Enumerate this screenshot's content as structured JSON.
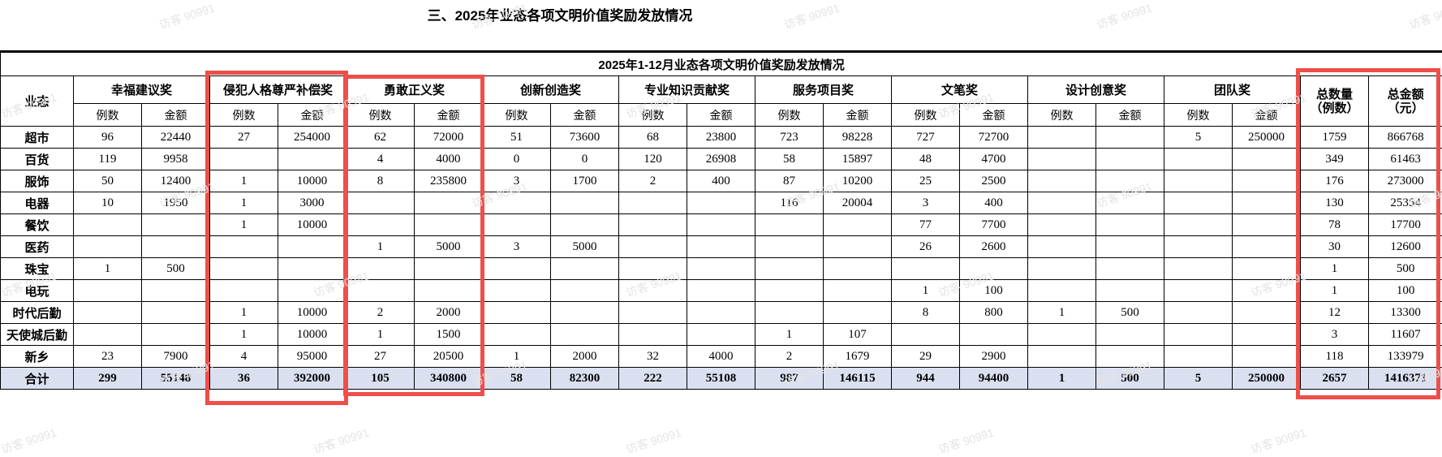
{
  "page_title": "三、2025年业态各项文明价值奖励发放情况",
  "watermark": {
    "text": "访客 90991"
  },
  "table": {
    "caption": "2025年1-12月业态各项文明价值奖励发放情况",
    "col1_header": "业态",
    "sub_headers": {
      "cases": "例数",
      "amount": "金额"
    },
    "groups": [
      {
        "name": "幸福建议奖",
        "highlighted": false
      },
      {
        "name": "侵犯人格尊严补偿奖",
        "highlighted": true
      },
      {
        "name": "勇敢正义奖",
        "highlighted": true
      },
      {
        "name": "创新创造奖",
        "highlighted": false
      },
      {
        "name": "专业知识贡献奖",
        "highlighted": false
      },
      {
        "name": "服务项目奖",
        "highlighted": false
      },
      {
        "name": "文笔奖",
        "highlighted": false
      },
      {
        "name": "设计创意奖",
        "highlighted": false
      },
      {
        "name": "团队奖",
        "highlighted": false
      }
    ],
    "total_headers": [
      {
        "title": "总数量",
        "unit": "（例数）"
      },
      {
        "title": "总金额",
        "unit": "（元）"
      }
    ],
    "rows": [
      {
        "label": "超市",
        "cells": [
          "96",
          "22440",
          "27",
          "254000",
          "62",
          "72000",
          "51",
          "73600",
          "68",
          "23800",
          "723",
          "98228",
          "727",
          "72700",
          "",
          "",
          "5",
          "250000",
          "1759",
          "866768"
        ]
      },
      {
        "label": "百货",
        "cells": [
          "119",
          "9958",
          "",
          "",
          "4",
          "4000",
          "0",
          "0",
          "120",
          "26908",
          "58",
          "15897",
          "48",
          "4700",
          "",
          "",
          "",
          "",
          "349",
          "61463"
        ]
      },
      {
        "label": "服饰",
        "cells": [
          "50",
          "12400",
          "1",
          "10000",
          "8",
          "235800",
          "3",
          "1700",
          "2",
          "400",
          "87",
          "10200",
          "25",
          "2500",
          "",
          "",
          "",
          "",
          "176",
          "273000"
        ]
      },
      {
        "label": "电器",
        "cells": [
          "10",
          "1950",
          "1",
          "3000",
          "",
          "",
          "",
          "",
          "",
          "",
          "116",
          "20004",
          "3",
          "400",
          "",
          "",
          "",
          "",
          "130",
          "25354"
        ]
      },
      {
        "label": "餐饮",
        "cells": [
          "",
          "",
          "1",
          "10000",
          "",
          "",
          "",
          "",
          "",
          "",
          "",
          "",
          "77",
          "7700",
          "",
          "",
          "",
          "",
          "78",
          "17700"
        ]
      },
      {
        "label": "医药",
        "cells": [
          "",
          "",
          "",
          "",
          "1",
          "5000",
          "3",
          "5000",
          "",
          "",
          "",
          "",
          "26",
          "2600",
          "",
          "",
          "",
          "",
          "30",
          "12600"
        ]
      },
      {
        "label": "珠宝",
        "cells": [
          "1",
          "500",
          "",
          "",
          "",
          "",
          "",
          "",
          "",
          "",
          "",
          "",
          "",
          "",
          "",
          "",
          "",
          "",
          "1",
          "500"
        ]
      },
      {
        "label": "电玩",
        "cells": [
          "",
          "",
          "",
          "",
          "",
          "",
          "",
          "",
          "",
          "",
          "",
          "",
          "1",
          "100",
          "",
          "",
          "",
          "",
          "1",
          "100"
        ]
      },
      {
        "label": "时代后勤",
        "cells": [
          "",
          "",
          "1",
          "10000",
          "2",
          "2000",
          "",
          "",
          "",
          "",
          "",
          "",
          "8",
          "800",
          "1",
          "500",
          "",
          "",
          "12",
          "13300"
        ]
      },
      {
        "label": "天使城后勤",
        "cells": [
          "",
          "",
          "1",
          "10000",
          "1",
          "1500",
          "",
          "",
          "",
          "",
          "1",
          "107",
          "",
          "",
          "",
          "",
          "",
          "",
          "3",
          "11607"
        ]
      },
      {
        "label": "新乡",
        "cells": [
          "23",
          "7900",
          "4",
          "95000",
          "27",
          "20500",
          "1",
          "2000",
          "32",
          "4000",
          "2",
          "1679",
          "29",
          "2900",
          "",
          "",
          "",
          "",
          "118",
          "133979"
        ]
      }
    ],
    "total_row": {
      "label": "合计",
      "cells": [
        "299",
        "55148",
        "36",
        "392000",
        "105",
        "340800",
        "58",
        "82300",
        "222",
        "55108",
        "987",
        "146115",
        "944",
        "94400",
        "1",
        "500",
        "5",
        "250000",
        "2657",
        "1416371"
      ]
    },
    "colors": {
      "highlight_red": "#ef4e49",
      "total_row_bg": "#dbe0f1",
      "watermark_gray": "#e4e4e4"
    }
  }
}
